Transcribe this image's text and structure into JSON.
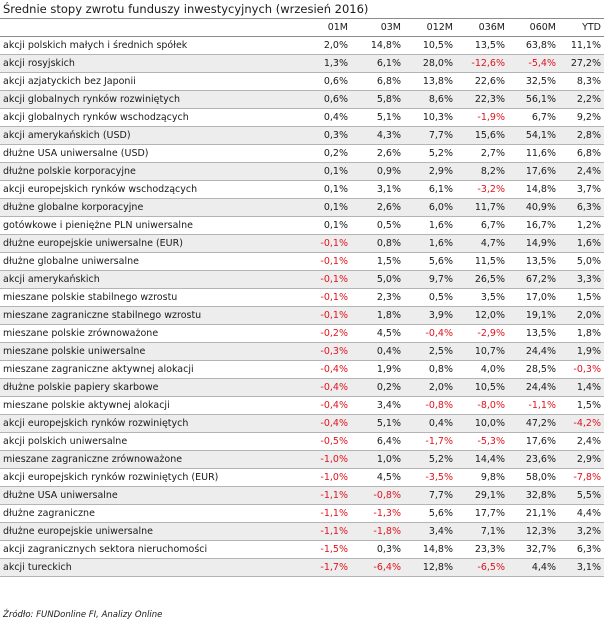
{
  "title": "Średnie stopy zwrotu funduszy inwestycyjnych (wrzesień 2016)",
  "columns": [
    "",
    "01M",
    "03M",
    "012M",
    "036M",
    "060M",
    "YTD"
  ],
  "rows": [
    [
      "akcji polskich małych i średnich spółek",
      "2,0%",
      "14,8%",
      "10,5%",
      "13,5%",
      "63,8%",
      "11,1%"
    ],
    [
      "akcji rosyjskich",
      "1,3%",
      "6,1%",
      "28,0%",
      "-12,6%",
      "-5,4%",
      "27,2%"
    ],
    [
      "akcji azjatyckich bez Japonii",
      "0,6%",
      "6,8%",
      "13,8%",
      "22,6%",
      "32,5%",
      "8,3%"
    ],
    [
      "akcji globalnych rynków rozwiniętych",
      "0,6%",
      "5,8%",
      "8,6%",
      "22,3%",
      "56,1%",
      "2,2%"
    ],
    [
      "akcji globalnych rynków wschodzących",
      "0,4%",
      "5,1%",
      "10,3%",
      "-1,9%",
      "6,7%",
      "9,2%"
    ],
    [
      "akcji amerykańskich (USD)",
      "0,3%",
      "4,3%",
      "7,7%",
      "15,6%",
      "54,1%",
      "2,8%"
    ],
    [
      "dłużne USA uniwersalne (USD)",
      "0,2%",
      "2,6%",
      "5,2%",
      "2,7%",
      "11,6%",
      "6,8%"
    ],
    [
      "dłużne polskie korporacyjne",
      "0,1%",
      "0,9%",
      "2,9%",
      "8,2%",
      "17,6%",
      "2,4%"
    ],
    [
      "akcji europejskich rynków wschodzących",
      "0,1%",
      "3,1%",
      "6,1%",
      "-3,2%",
      "14,8%",
      "3,7%"
    ],
    [
      "dłużne globalne korporacyjne",
      "0,1%",
      "2,6%",
      "6,0%",
      "11,7%",
      "40,9%",
      "6,3%"
    ],
    [
      "gotówkowe i pieniężne PLN uniwersalne",
      "0,1%",
      "0,5%",
      "1,6%",
      "6,7%",
      "16,7%",
      "1,2%"
    ],
    [
      "dłużne europejskie uniwersalne (EUR)",
      "-0,1%",
      "0,8%",
      "1,6%",
      "4,7%",
      "14,9%",
      "1,6%"
    ],
    [
      "dłużne globalne uniwersalne",
      "-0,1%",
      "1,5%",
      "5,6%",
      "11,5%",
      "13,5%",
      "5,0%"
    ],
    [
      "akcji amerykańskich",
      "-0,1%",
      "5,0%",
      "9,7%",
      "26,5%",
      "67,2%",
      "3,3%"
    ],
    [
      "mieszane polskie stabilnego wzrostu",
      "-0,1%",
      "2,3%",
      "0,5%",
      "3,5%",
      "17,0%",
      "1,5%"
    ],
    [
      "mieszane zagraniczne stabilnego wzrostu",
      "-0,1%",
      "1,8%",
      "3,9%",
      "12,0%",
      "19,1%",
      "2,0%"
    ],
    [
      "mieszane polskie zrównoważone",
      "-0,2%",
      "4,5%",
      "-0,4%",
      "-2,9%",
      "13,5%",
      "1,8%"
    ],
    [
      "mieszane polskie uniwersalne",
      "-0,3%",
      "0,4%",
      "2,5%",
      "10,7%",
      "24,4%",
      "1,9%"
    ],
    [
      "mieszane zagraniczne aktywnej alokacji",
      "-0,4%",
      "1,9%",
      "0,8%",
      "4,0%",
      "28,5%",
      "-0,3%"
    ],
    [
      "dłużne polskie papiery skarbowe",
      "-0,4%",
      "0,2%",
      "2,0%",
      "10,5%",
      "24,4%",
      "1,4%"
    ],
    [
      "mieszane polskie aktywnej alokacji",
      "-0,4%",
      "3,4%",
      "-0,8%",
      "-8,0%",
      "-1,1%",
      "1,5%"
    ],
    [
      "akcji europejskich rynków rozwiniętych",
      "-0,4%",
      "5,1%",
      "0,4%",
      "10,0%",
      "47,2%",
      "-4,2%"
    ],
    [
      "akcji polskich uniwersalne",
      "-0,5%",
      "6,4%",
      "-1,7%",
      "-5,3%",
      "17,6%",
      "2,4%"
    ],
    [
      "mieszane zagraniczne zrównoważone",
      "-1,0%",
      "1,0%",
      "5,2%",
      "14,4%",
      "23,6%",
      "2,9%"
    ],
    [
      "akcji europejskich rynków rozwiniętych (EUR)",
      "-1,0%",
      "4,5%",
      "-3,5%",
      "9,8%",
      "58,0%",
      "-7,8%"
    ],
    [
      "dłużne USA uniwersalne",
      "-1,1%",
      "-0,8%",
      "7,7%",
      "29,1%",
      "32,8%",
      "5,5%"
    ],
    [
      "dłużne zagraniczne",
      "-1,1%",
      "-1,3%",
      "5,6%",
      "17,7%",
      "21,1%",
      "4,4%"
    ],
    [
      "dłużne europejskie uniwersalne",
      "-1,1%",
      "-1,8%",
      "3,4%",
      "7,1%",
      "12,3%",
      "3,2%"
    ],
    [
      "akcji zagranicznych sektora nieruchomości",
      "-1,5%",
      "0,3%",
      "14,8%",
      "23,3%",
      "32,7%",
      "6,3%"
    ],
    [
      "akcji tureckich",
      "-1,7%",
      "-6,4%",
      "12,8%",
      "-6,5%",
      "4,4%",
      "3,1%"
    ]
  ],
  "source": "Źródło: FUNDonline FI, Analizy Online",
  "colors": {
    "negative": "#e0141e",
    "stripe": "#ededed"
  }
}
